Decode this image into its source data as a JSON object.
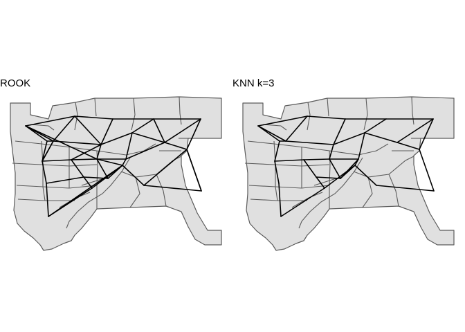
{
  "panels": [
    {
      "id": "rook",
      "title": "ROOK"
    },
    {
      "id": "knn",
      "title": "KNN k=3"
    }
  ],
  "colors": {
    "region_fill": "#e0e0e0",
    "region_border": "#5a5a5a",
    "edge": "#000000",
    "background": "#ffffff"
  }
}
